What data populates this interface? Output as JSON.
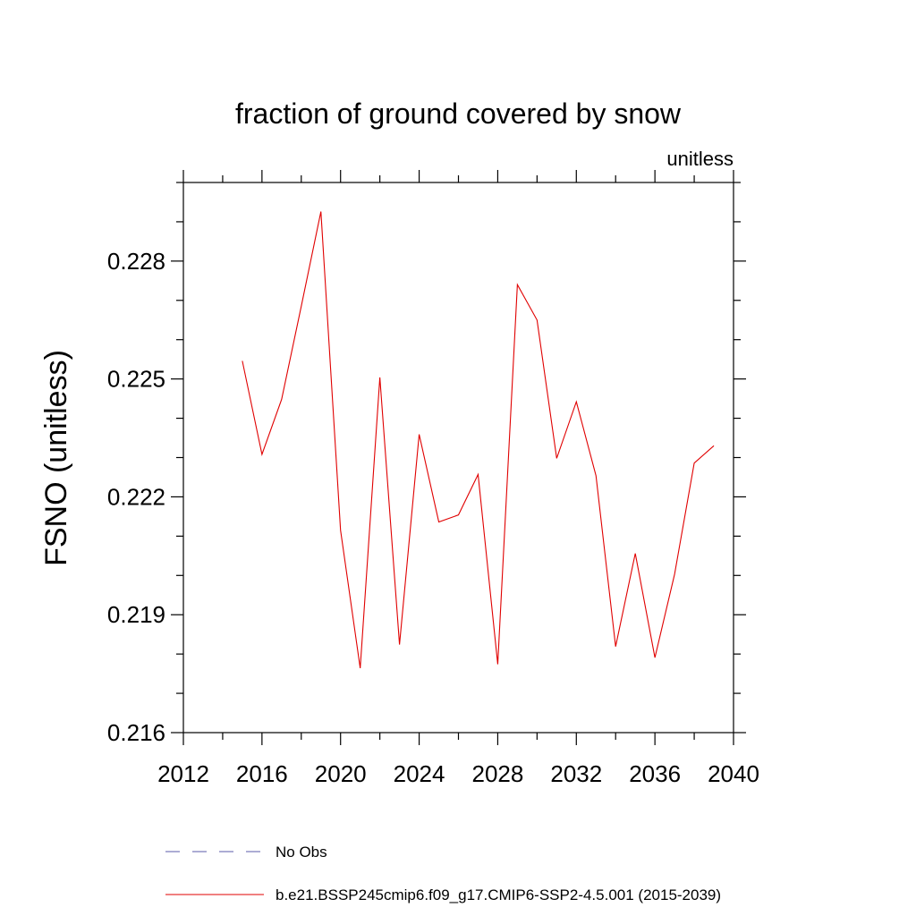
{
  "chart_data": {
    "type": "line",
    "title": "fraction of ground covered by snow",
    "units_label": "unitless",
    "ylabel": "FSNO  (unitless)",
    "xlabel": "",
    "xlim": [
      2012,
      2040
    ],
    "ylim": [
      0.216,
      0.23
    ],
    "x_ticks": [
      2012,
      2016,
      2020,
      2024,
      2028,
      2032,
      2036,
      2040
    ],
    "x_minor_ticks": [
      2014,
      2018,
      2022,
      2026,
      2030,
      2034,
      2038
    ],
    "y_ticks": [
      0.216,
      0.219,
      0.222,
      0.225,
      0.228
    ],
    "y_tick_labels": [
      "0.216",
      "0.219",
      "0.222",
      "0.225",
      "0.228"
    ],
    "y_minor_step": 0.001,
    "x_tick_labels": [
      "2012",
      "2016",
      "2020",
      "2024",
      "2028",
      "2032",
      "2036",
      "2040"
    ],
    "series": [
      {
        "name": "No Obs",
        "color": "#5a5aa8",
        "style": "dashed",
        "x": [],
        "values": []
      },
      {
        "name": "b.e21.BSSP245cmip6.f09_g17.CMIP6-SSP2-4.5.001 (2015-2039)",
        "color": "#e00000",
        "style": "solid",
        "x": [
          2015,
          2016,
          2017,
          2018,
          2019,
          2020,
          2021,
          2022,
          2023,
          2024,
          2025,
          2026,
          2027,
          2028,
          2029,
          2030,
          2031,
          2032,
          2033,
          2034,
          2035,
          2036,
          2037,
          2038,
          2039
        ],
        "values": [
          0.22546,
          0.22308,
          0.22448,
          0.22685,
          0.22926,
          0.22115,
          0.21764,
          0.22504,
          0.21824,
          0.22359,
          0.22136,
          0.22154,
          0.22257,
          0.21774,
          0.2274,
          0.2265,
          0.22298,
          0.22442,
          0.22254,
          0.21819,
          0.22056,
          0.21791,
          0.22003,
          0.22286,
          0.2233
        ]
      }
    ],
    "legend": {
      "position": "bottom-left",
      "entries": [
        "No Obs",
        "b.e21.BSSP245cmip6.f09_g17.CMIP6-SSP2-4.5.001 (2015-2039)"
      ]
    }
  }
}
